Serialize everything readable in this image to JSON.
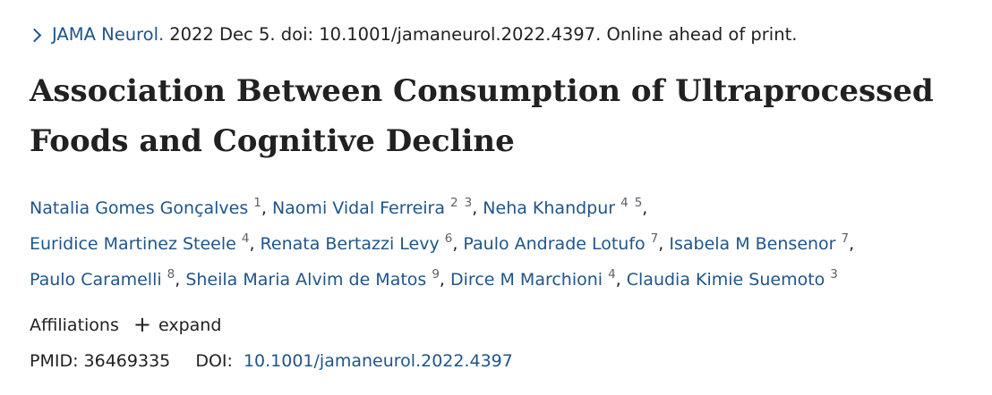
{
  "citation": {
    "journal": "JAMA Neurol.",
    "rest": "2022 Dec 5. doi: 10.1001/jamaneurol.2022.4397. Online ahead of print."
  },
  "title": {
    "line1": "Association Between Consumption of Ultraprocessed",
    "line2": "Foods and Cognitive Decline"
  },
  "authors": [
    {
      "name": "Natalia Gomes Gonçalves",
      "affs": [
        "1"
      ]
    },
    {
      "name": "Naomi Vidal Ferreira",
      "affs": [
        "2",
        "3"
      ]
    },
    {
      "name": "Neha Khandpur",
      "affs": [
        "4",
        "5"
      ]
    },
    {
      "name": "Euridice Martinez Steele",
      "affs": [
        "4"
      ]
    },
    {
      "name": "Renata Bertazzi Levy",
      "affs": [
        "6"
      ]
    },
    {
      "name": "Paulo Andrade Lotufo",
      "affs": [
        "7"
      ]
    },
    {
      "name": "Isabela M Bensenor",
      "affs": [
        "7"
      ]
    },
    {
      "name": "Paulo Caramelli",
      "affs": [
        "8"
      ]
    },
    {
      "name": "Sheila Maria Alvim de Matos",
      "affs": [
        "9"
      ]
    },
    {
      "name": "Dirce M Marchioni",
      "affs": [
        "4"
      ]
    },
    {
      "name": "Claudia Kimie Suemoto",
      "affs": [
        "3"
      ]
    }
  ],
  "affiliations": {
    "label": "Affiliations",
    "plus": "+",
    "expand": "expand"
  },
  "ids": {
    "pmid_label": "PMID:",
    "pmid": "36469335",
    "doi_label": "DOI:",
    "doi": "10.1001/jamaneurol.2022.4397"
  },
  "colors": {
    "link": "#20558a",
    "text": "#212121",
    "superscript": "#5b616b"
  }
}
